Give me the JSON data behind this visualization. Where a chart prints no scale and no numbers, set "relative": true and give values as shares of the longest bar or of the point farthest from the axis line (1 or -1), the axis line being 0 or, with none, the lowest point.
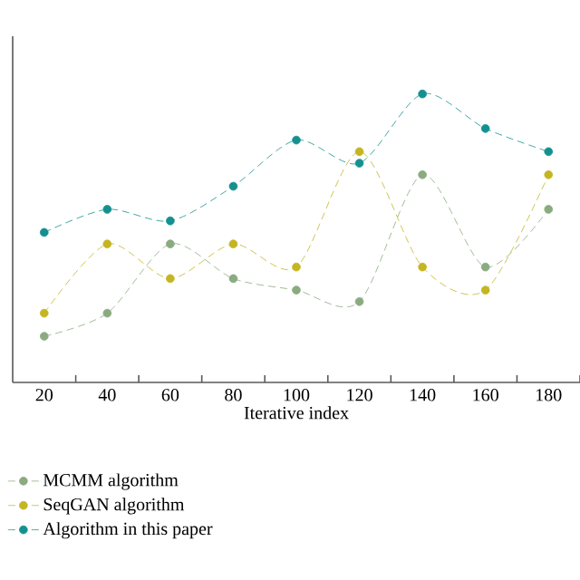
{
  "chart_data": {
    "type": "line",
    "relative": true,
    "xlabel": "Iterative index",
    "x": [
      20,
      40,
      60,
      80,
      100,
      120,
      140,
      160,
      180
    ],
    "xlim": [
      10,
      190
    ],
    "xticks": [
      20,
      {
        "value": 30,
        "label": null
      },
      40,
      {
        "value": 50,
        "label": null
      },
      60,
      {
        "value": 70,
        "label": null
      },
      80,
      {
        "value": 90,
        "label": null
      },
      100,
      {
        "value": 110,
        "label": null
      },
      120,
      {
        "value": 130,
        "label": null
      },
      140,
      {
        "value": 150,
        "label": null
      },
      160,
      {
        "value": 170,
        "label": null
      },
      180,
      {
        "value": 190,
        "label": null
      }
    ],
    "marker": "circle",
    "line_style": "dashed",
    "legend": "bottom",
    "grid": false,
    "series": [
      {
        "name": "MCMM algorithm",
        "color": "#8aab80",
        "values": [
          0.16,
          0.24,
          0.48,
          0.36,
          0.32,
          0.28,
          0.72,
          0.4,
          0.6
        ]
      },
      {
        "name": "SeqGAN algorithm",
        "color": "#c4b522",
        "values": [
          0.24,
          0.48,
          0.36,
          0.48,
          0.4,
          0.8,
          0.4,
          0.32,
          0.72
        ]
      },
      {
        "name": "Algorithm in this paper",
        "color": "#14908f",
        "values": [
          0.52,
          0.6,
          0.56,
          0.68,
          0.84,
          0.76,
          1.0,
          0.88,
          0.8
        ]
      }
    ]
  }
}
